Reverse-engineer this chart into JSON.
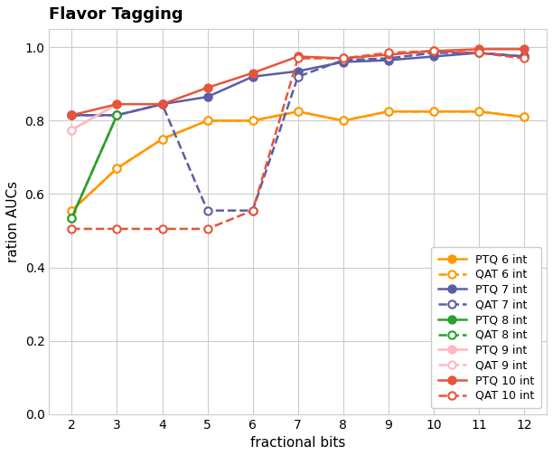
{
  "title": "Flavor Tagging",
  "xlabel": "fractional bits",
  "ylabel": "ration AUCs",
  "xlim": [
    1.5,
    12.5
  ],
  "ylim": [
    0.0,
    1.05
  ],
  "xticks": [
    2,
    3,
    4,
    5,
    6,
    7,
    8,
    9,
    10,
    11,
    12
  ],
  "yticks": [
    0.0,
    0.2,
    0.4,
    0.6,
    0.8,
    1.0
  ],
  "series": [
    {
      "label": "PTQ 6 int",
      "color": "#FF9900",
      "linestyle": "-",
      "marker": "o",
      "markersize": 6,
      "linewidth": 1.8,
      "mfc": "#FF9900",
      "x": [
        2,
        3,
        4,
        5,
        6,
        7,
        8,
        9,
        10,
        11,
        12
      ],
      "y": [
        0.555,
        0.67,
        0.75,
        0.8,
        0.8,
        0.825,
        0.8,
        0.825,
        0.825,
        0.825,
        0.81
      ]
    },
    {
      "label": "QAT 6 int",
      "color": "#FF9900",
      "linestyle": "--",
      "marker": "o",
      "markersize": 6,
      "linewidth": 1.8,
      "mfc": "white",
      "x": [
        2,
        3,
        4,
        5,
        6,
        7,
        8,
        9,
        10,
        11,
        12
      ],
      "y": [
        0.555,
        0.67,
        0.75,
        0.8,
        0.8,
        0.825,
        0.8,
        0.825,
        0.825,
        0.825,
        0.81
      ]
    },
    {
      "label": "PTQ 7 int",
      "color": "#5B5EA6",
      "linestyle": "-",
      "marker": "o",
      "markersize": 6,
      "linewidth": 1.8,
      "mfc": "#5B5EA6",
      "x": [
        2,
        3,
        4,
        5,
        6,
        7,
        8,
        9,
        10,
        11,
        12
      ],
      "y": [
        0.815,
        0.815,
        0.845,
        0.865,
        0.92,
        0.935,
        0.96,
        0.965,
        0.975,
        0.985,
        0.975
      ]
    },
    {
      "label": "QAT 7 int",
      "color": "#5B5EA6",
      "linestyle": "--",
      "marker": "o",
      "markersize": 6,
      "linewidth": 1.8,
      "mfc": "white",
      "x": [
        2,
        3,
        4,
        5,
        6,
        7,
        8,
        9,
        10,
        11,
        12
      ],
      "y": [
        0.815,
        0.815,
        0.845,
        0.555,
        0.555,
        0.92,
        0.965,
        0.97,
        0.985,
        0.985,
        0.975
      ]
    },
    {
      "label": "PTQ 8 int",
      "color": "#2CA02C",
      "linestyle": "-",
      "marker": "o",
      "markersize": 6,
      "linewidth": 1.8,
      "mfc": "#2CA02C",
      "x": [
        2,
        3
      ],
      "y": [
        0.535,
        0.815
      ]
    },
    {
      "label": "QAT 8 int",
      "color": "#2CA02C",
      "linestyle": "--",
      "marker": "o",
      "markersize": 6,
      "linewidth": 1.8,
      "mfc": "white",
      "x": [
        2,
        3
      ],
      "y": [
        0.535,
        0.815
      ]
    },
    {
      "label": "PTQ 9 int",
      "color": "#FFB6C1",
      "linestyle": "-",
      "marker": "o",
      "markersize": 6,
      "linewidth": 1.8,
      "mfc": "#FFB6C1",
      "x": [
        2,
        3
      ],
      "y": [
        0.775,
        0.845
      ]
    },
    {
      "label": "QAT 9 int",
      "color": "#FFB6C1",
      "linestyle": "--",
      "marker": "o",
      "markersize": 6,
      "linewidth": 1.8,
      "mfc": "white",
      "x": [
        2,
        3
      ],
      "y": [
        0.775,
        0.845
      ]
    },
    {
      "label": "PTQ 10 int",
      "color": "#E8543A",
      "linestyle": "-",
      "marker": "o",
      "markersize": 6,
      "linewidth": 1.8,
      "mfc": "#E8543A",
      "x": [
        2,
        3,
        4,
        5,
        6,
        7,
        8,
        9,
        10,
        11,
        12
      ],
      "y": [
        0.815,
        0.845,
        0.845,
        0.89,
        0.93,
        0.975,
        0.97,
        0.98,
        0.99,
        0.995,
        0.995
      ]
    },
    {
      "label": "QAT 10 int",
      "color": "#E8543A",
      "linestyle": "--",
      "marker": "o",
      "markersize": 6,
      "linewidth": 1.8,
      "mfc": "white",
      "x": [
        2,
        3,
        4,
        5,
        6,
        7,
        8,
        9,
        10,
        11,
        12
      ],
      "y": [
        0.505,
        0.505,
        0.505,
        0.505,
        0.555,
        0.97,
        0.97,
        0.985,
        0.99,
        0.985,
        0.97
      ]
    }
  ],
  "legend_loc": "lower right",
  "legend_fontsize": 9,
  "title_fontsize": 13,
  "axis_fontsize": 11,
  "figsize": [
    6.12,
    5.04
  ],
  "dpi": 100
}
